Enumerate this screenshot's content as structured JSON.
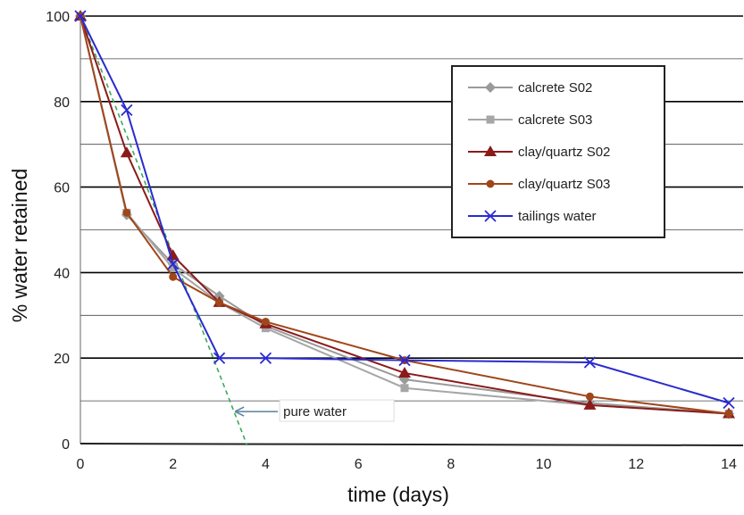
{
  "chart_data": {
    "type": "line",
    "title": "",
    "xlabel": "time (days)",
    "ylabel": "% water retained",
    "xlim": [
      0,
      14
    ],
    "ylim": [
      0,
      100
    ],
    "x_ticks": [
      "0",
      "2",
      "4",
      "6",
      "8",
      "10",
      "12",
      "14"
    ],
    "y_ticks": [
      "0",
      "20",
      "40",
      "60",
      "80",
      "100"
    ],
    "grid": true,
    "legend_position": "top-right",
    "series": [
      {
        "name": "calcrete S02",
        "color": "#9a9a9a",
        "marker": "diamond",
        "x": [
          0,
          1,
          2,
          3,
          4,
          7,
          11,
          14
        ],
        "y": [
          100,
          53.5,
          42,
          34.5,
          27.5,
          15,
          9.5,
          7
        ]
      },
      {
        "name": "calcrete S03",
        "color": "#a6a6a6",
        "marker": "square",
        "x": [
          0,
          1,
          2,
          3,
          4,
          7,
          11,
          14
        ],
        "y": [
          100,
          54,
          41,
          33,
          27,
          13,
          9,
          7
        ]
      },
      {
        "name": "clay/quartz S02",
        "color": "#8b1a1a",
        "marker": "triangle",
        "x": [
          0,
          1,
          2,
          3,
          4,
          7,
          11,
          14
        ],
        "y": [
          100,
          68,
          44,
          33,
          28,
          16.5,
          9,
          7
        ]
      },
      {
        "name": "clay/quartz S03",
        "color": "#a0461a",
        "marker": "circle",
        "x": [
          0,
          1,
          2,
          3,
          4,
          7,
          11,
          14
        ],
        "y": [
          100,
          54,
          39,
          33,
          28.5,
          19.5,
          11,
          7
        ]
      },
      {
        "name": "tailings water",
        "color": "#2a2ad0",
        "marker": "x",
        "x": [
          0,
          1,
          2,
          3,
          4,
          7,
          11,
          14
        ],
        "y": [
          100,
          78,
          42,
          20,
          20,
          19.5,
          19,
          9.5
        ]
      }
    ],
    "reference_line": {
      "label": "pure water",
      "color": "#3aaa5a",
      "x": [
        0,
        3.6
      ],
      "y": [
        100,
        0
      ],
      "annotation_point": [
        3.3,
        7.5
      ]
    }
  }
}
